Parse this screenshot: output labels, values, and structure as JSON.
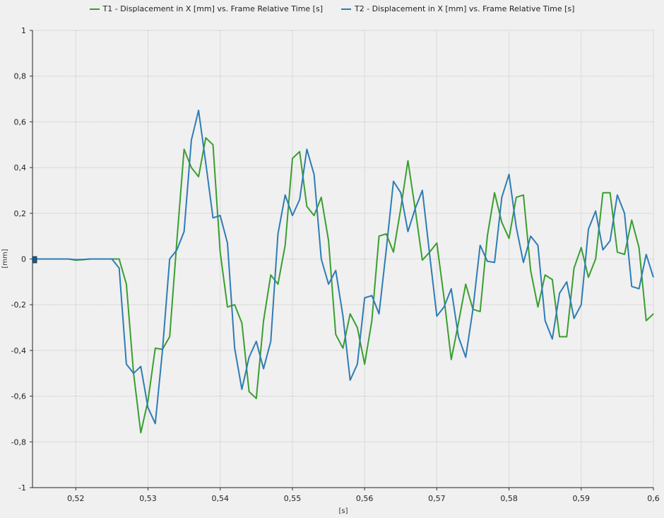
{
  "chart_data": {
    "type": "line",
    "xlabel": "[s]",
    "ylabel": "[mm]",
    "xlim": [
      0.514,
      0.6
    ],
    "ylim": [
      -1,
      1
    ],
    "x_ticks": [
      0.52,
      0.53,
      0.54,
      0.55,
      0.56,
      0.57,
      0.58,
      0.59,
      0.6
    ],
    "x_tick_labels": [
      "0,52",
      "0,53",
      "0,54",
      "0,55",
      "0,56",
      "0,57",
      "0,58",
      "0,59",
      "0,6"
    ],
    "y_ticks": [
      -1,
      -0.8,
      -0.6,
      -0.4,
      -0.2,
      0,
      0.2,
      0.4,
      0.6,
      0.8,
      1
    ],
    "y_tick_labels": [
      "-1",
      "-0,8",
      "-0,6",
      "-0,4",
      "-0,2",
      "0",
      "0,2",
      "0,4",
      "0,6",
      "0,8",
      "1"
    ],
    "grid": true,
    "legend_position": "top-center",
    "series": [
      {
        "name": "T1 - Displacement in X [mm] vs. Frame Relative Time [s]",
        "color": "#3a9e30",
        "x": [
          0.514,
          0.516,
          0.518,
          0.519,
          0.52,
          0.521,
          0.522,
          0.523,
          0.524,
          0.525,
          0.526,
          0.527,
          0.528,
          0.529,
          0.53,
          0.531,
          0.532,
          0.533,
          0.534,
          0.535,
          0.536,
          0.537,
          0.538,
          0.539,
          0.54,
          0.541,
          0.542,
          0.543,
          0.544,
          0.545,
          0.546,
          0.547,
          0.548,
          0.549,
          0.55,
          0.551,
          0.552,
          0.553,
          0.554,
          0.555,
          0.556,
          0.557,
          0.558,
          0.559,
          0.56,
          0.561,
          0.562,
          0.563,
          0.564,
          0.565,
          0.566,
          0.567,
          0.568,
          0.569,
          0.57,
          0.571,
          0.572,
          0.573,
          0.574,
          0.575,
          0.576,
          0.577,
          0.578,
          0.579,
          0.58,
          0.581,
          0.582,
          0.583,
          0.584,
          0.585,
          0.586,
          0.587,
          0.588,
          0.589,
          0.59,
          0.591,
          0.592,
          0.593,
          0.594,
          0.595,
          0.596,
          0.597,
          0.598,
          0.599,
          0.6
        ],
        "y": [
          0,
          0,
          0,
          0,
          -0.005,
          -0.003,
          0,
          0,
          0,
          0,
          0,
          -0.11,
          -0.5,
          -0.76,
          -0.62,
          -0.39,
          -0.395,
          -0.34,
          0.08,
          0.48,
          0.4,
          0.36,
          0.53,
          0.5,
          0.03,
          -0.21,
          -0.2,
          -0.28,
          -0.58,
          -0.61,
          -0.27,
          -0.07,
          -0.11,
          0.06,
          0.44,
          0.47,
          0.23,
          0.19,
          0.27,
          0.08,
          -0.33,
          -0.39,
          -0.24,
          -0.3,
          -0.46,
          -0.27,
          0.1,
          0.11,
          0.03,
          0.22,
          0.43,
          0.22,
          -0.005,
          0.03,
          0.07,
          -0.17,
          -0.44,
          -0.28,
          -0.11,
          -0.22,
          -0.23,
          0.1,
          0.29,
          0.16,
          0.09,
          0.27,
          0.28,
          -0.05,
          -0.21,
          -0.07,
          -0.09,
          -0.34,
          -0.34,
          -0.04,
          0.05,
          -0.08,
          0.0,
          0.29,
          0.29,
          0.03,
          0.02,
          0.17,
          0.05,
          -0.27,
          -0.24
        ]
      },
      {
        "name": "T2 - Displacement in X [mm] vs. Frame Relative Time [s]",
        "color": "#2e7cb5",
        "x": [
          0.514,
          0.516,
          0.518,
          0.519,
          0.52,
          0.521,
          0.522,
          0.523,
          0.524,
          0.525,
          0.526,
          0.527,
          0.528,
          0.529,
          0.53,
          0.531,
          0.532,
          0.533,
          0.534,
          0.535,
          0.536,
          0.537,
          0.538,
          0.539,
          0.54,
          0.541,
          0.542,
          0.543,
          0.544,
          0.545,
          0.546,
          0.547,
          0.548,
          0.549,
          0.55,
          0.551,
          0.552,
          0.553,
          0.554,
          0.555,
          0.556,
          0.557,
          0.558,
          0.559,
          0.56,
          0.561,
          0.562,
          0.563,
          0.564,
          0.565,
          0.566,
          0.567,
          0.568,
          0.569,
          0.57,
          0.571,
          0.572,
          0.573,
          0.574,
          0.575,
          0.576,
          0.577,
          0.578,
          0.579,
          0.58,
          0.581,
          0.582,
          0.583,
          0.584,
          0.585,
          0.586,
          0.587,
          0.588,
          0.589,
          0.59,
          0.591,
          0.592,
          0.593,
          0.594,
          0.595,
          0.596,
          0.597,
          0.598,
          0.599,
          0.6
        ],
        "y": [
          0,
          0,
          0,
          0,
          -0.003,
          -0.002,
          0,
          0,
          0,
          0,
          -0.04,
          -0.46,
          -0.5,
          -0.47,
          -0.65,
          -0.72,
          -0.4,
          0.0,
          0.04,
          0.12,
          0.52,
          0.65,
          0.42,
          0.18,
          0.19,
          0.07,
          -0.39,
          -0.57,
          -0.43,
          -0.36,
          -0.48,
          -0.36,
          0.11,
          0.28,
          0.19,
          0.26,
          0.48,
          0.37,
          0.0,
          -0.11,
          -0.05,
          -0.25,
          -0.53,
          -0.46,
          -0.17,
          -0.16,
          -0.24,
          0.04,
          0.34,
          0.29,
          0.12,
          0.22,
          0.3,
          0.02,
          -0.25,
          -0.21,
          -0.13,
          -0.34,
          -0.43,
          -0.22,
          0.06,
          -0.01,
          -0.015,
          0.27,
          0.37,
          0.14,
          -0.015,
          0.1,
          0.06,
          -0.27,
          -0.35,
          -0.15,
          -0.1,
          -0.26,
          -0.2,
          0.13,
          0.21,
          0.04,
          0.08,
          0.28,
          0.2,
          -0.12,
          -0.13,
          0.02,
          -0.08
        ]
      }
    ]
  }
}
